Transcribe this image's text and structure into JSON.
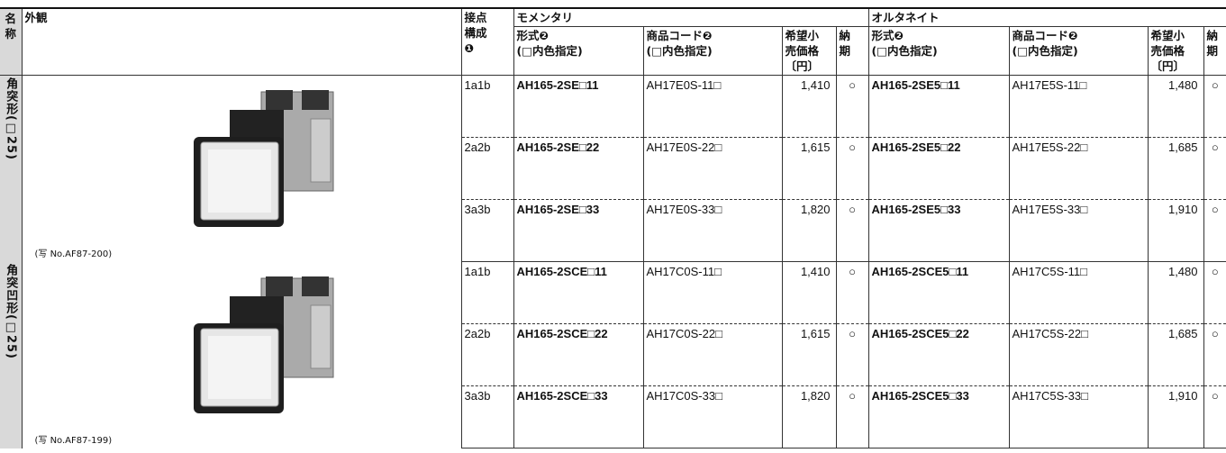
{
  "header": {
    "name": [
      "名",
      "称"
    ],
    "appearance": "外観",
    "contact": [
      "接点",
      "構成",
      "❶"
    ],
    "momentary": "モメンタリ",
    "alternate": "オルタネイト",
    "momentary_cols": [
      [
        "形式❷",
        "(□内色指定)"
      ],
      [
        "商品コード❷",
        "(□内色指定)"
      ],
      [
        "希望小",
        "売価格",
        "〔円〕"
      ],
      [
        "納",
        "期"
      ]
    ],
    "alternate_cols": [
      [
        "形式❷",
        "(□内色指定)"
      ],
      [
        "商品コード❷",
        "(□内色指定)"
      ],
      [
        "希望小",
        "売価格",
        "〔円〕"
      ],
      [
        "納",
        "期"
      ]
    ]
  },
  "groups": [
    {
      "name": "角突形(□25)",
      "photo_caption": "(写 No.AF87-200)",
      "rows": [
        [
          "1a1b",
          "AH165-2SE□11",
          "AH17E0S-11□",
          "1,410",
          "○",
          "AH165-2SE5□11",
          "AH17E5S-11□",
          "1,480",
          "○"
        ],
        [
          "2a2b",
          "AH165-2SE□22",
          "AH17E0S-22□",
          "1,615",
          "○",
          "AH165-2SE5□22",
          "AH17E5S-22□",
          "1,685",
          "○"
        ],
        [
          "3a3b",
          "AH165-2SE□33",
          "AH17E0S-33□",
          "1,820",
          "○",
          "AH165-2SE5□33",
          "AH17E5S-33□",
          "1,910",
          "○"
        ]
      ]
    },
    {
      "name": "角突凹形(□25)",
      "photo_caption": "(写 No.AF87-199)",
      "rows": [
        [
          "1a1b",
          "AH165-2SCE□11",
          "AH17C0S-11□",
          "1,410",
          "○",
          "AH165-2SCE5□11",
          "AH17C5S-11□",
          "1,480",
          "○"
        ],
        [
          "2a2b",
          "AH165-2SCE□22",
          "AH17C0S-22□",
          "1,615",
          "○",
          "AH165-2SCE5□22",
          "AH17C5S-22□",
          "1,685",
          "○"
        ],
        [
          "3a3b",
          "AH165-2SCE□33",
          "AH17C0S-33□",
          "1,820",
          "○",
          "AH165-2SCE5□33",
          "AH17C5S-33□",
          "1,910",
          "○"
        ]
      ]
    }
  ]
}
